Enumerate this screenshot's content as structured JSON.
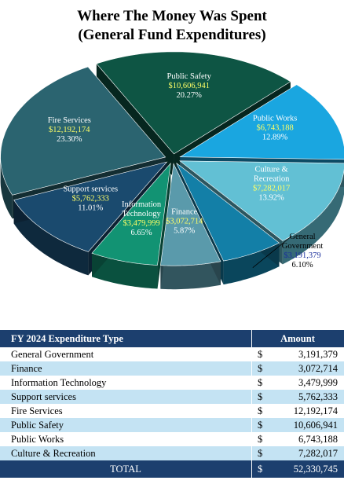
{
  "title": {
    "line1": "Where The Money Was Spent",
    "line2": "(General Fund Expenditures)"
  },
  "colors": {
    "header_bg": "#1c3f6e",
    "alt_row": "#c4e3f3",
    "label_amount": "#ffff66",
    "label_amount_outside": "#1a2f9c"
  },
  "chart_data": {
    "type": "pie",
    "style": "3d-exploded",
    "title": "",
    "slices": [
      {
        "label": "Public Safety",
        "amount": "$10,606,941",
        "percent": "20.27%",
        "value": 10606941,
        "color": "#0e5544"
      },
      {
        "label": "Public Works",
        "amount": "$6,743,188",
        "percent": "12.89%",
        "value": 6743188,
        "color": "#1aa6e0"
      },
      {
        "label": "Culture & Recreation",
        "amount": "$7,282,017",
        "percent": "13.92%",
        "value": 7282017,
        "color": "#62c0d4"
      },
      {
        "label": "General Government",
        "amount": "$3,191,379",
        "percent": "6.10%",
        "value": 3191379,
        "color": "#137fa7"
      },
      {
        "label": "Finance",
        "amount": "$3,072,714",
        "percent": "5.87%",
        "value": 3072714,
        "color": "#5a9aab"
      },
      {
        "label": "Information Technology",
        "amount": "$3,479,999",
        "percent": "6.65%",
        "value": 3479999,
        "color": "#129373"
      },
      {
        "label": "Support services",
        "amount": "$5,762,333",
        "percent": "11.01%",
        "value": 5762333,
        "color": "#1a4a6e"
      },
      {
        "label": "Fire Services",
        "amount": "$12,192,174",
        "percent": "23.30%",
        "value": 12192174,
        "color": "#2b6470"
      }
    ]
  },
  "table": {
    "header": {
      "type": "FY 2024 Expenditure Type",
      "amount": "Amount"
    },
    "currency": "$",
    "rows": [
      {
        "name": "General Government",
        "amount": "3,191,379"
      },
      {
        "name": "Finance",
        "amount": "3,072,714"
      },
      {
        "name": "Information Technology",
        "amount": "3,479,999"
      },
      {
        "name": "Support services",
        "amount": "5,762,333"
      },
      {
        "name": "Fire Services",
        "amount": "12,192,174"
      },
      {
        "name": "Public Safety",
        "amount": "10,606,941"
      },
      {
        "name": "Public Works",
        "amount": "6,743,188"
      },
      {
        "name": "Culture & Recreation",
        "amount": "7,282,017"
      }
    ],
    "total": {
      "label": "TOTAL",
      "amount": "52,330,745"
    }
  }
}
